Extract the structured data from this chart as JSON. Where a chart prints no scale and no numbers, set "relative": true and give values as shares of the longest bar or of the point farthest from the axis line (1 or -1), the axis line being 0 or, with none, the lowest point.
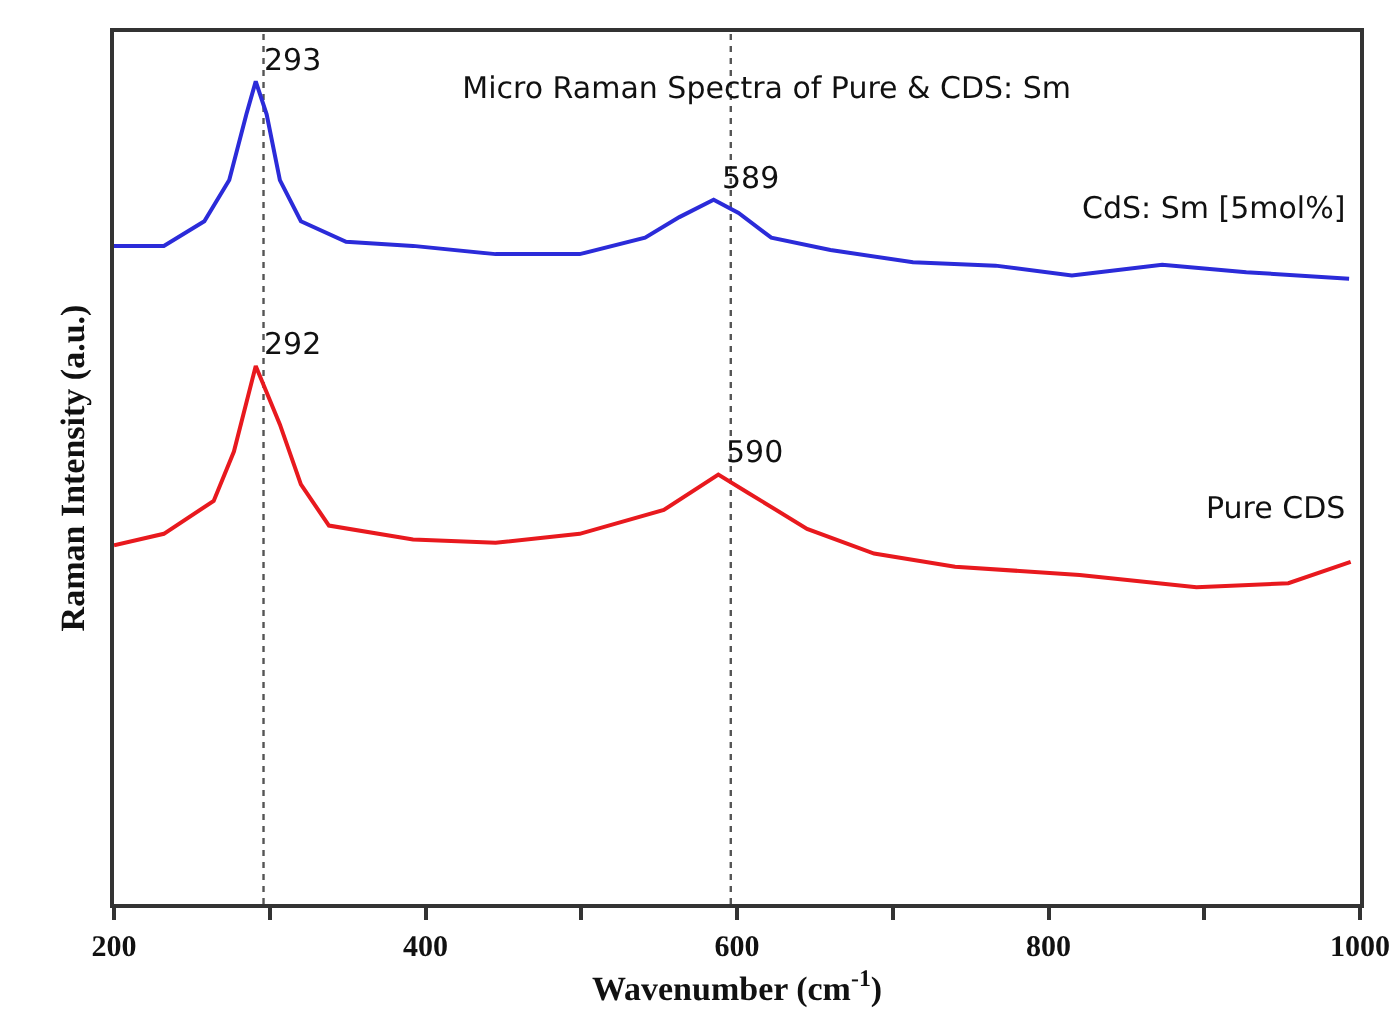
{
  "chart_data": {
    "type": "line",
    "title": "Micro Raman Spectra of Pure & CDS: Sm",
    "xlabel": "Wavenumber (cm$^{-1}$)",
    "ylabel": "Raman Intensity (a.u.)",
    "relative": true,
    "xlim": [
      200,
      1000
    ],
    "xticks": [
      200,
      {
        "value": 300,
        "label": null
      },
      400,
      {
        "value": 500,
        "label": null
      },
      600,
      {
        "value": 700,
        "label": null
      },
      800,
      {
        "value": 900,
        "label": null
      },
      1000
    ],
    "series": [
      {
        "name": "CdS: Sm [5mol%]",
        "color": "#2b2bd9",
        "x": [
          200,
          232,
          258,
          274,
          285,
          291,
          298,
          306.5,
          320,
          349,
          392,
          445,
          499,
          541,
          563,
          585,
          601,
          622,
          660,
          713,
          766,
          815,
          873,
          927,
          993
        ],
        "values": [
          0.8,
          0.8,
          0.83,
          0.88,
          0.96,
          1.0,
          0.96,
          0.88,
          0.83,
          0.805,
          0.8,
          0.79,
          0.79,
          0.81,
          0.835,
          0.856,
          0.84,
          0.81,
          0.795,
          0.78,
          0.776,
          0.764,
          0.777,
          0.768,
          0.76
        ]
      },
      {
        "name": "Pure CDS",
        "color": "#e8191e",
        "x": [
          200,
          232,
          264,
          277,
          291,
          306.5,
          320,
          338,
          392,
          445,
          499,
          553,
          588,
          607,
          645,
          688,
          740,
          820,
          895,
          954,
          994
        ],
        "values": [
          0.436,
          0.45,
          0.49,
          0.55,
          0.654,
          0.583,
          0.51,
          0.46,
          0.443,
          0.439,
          0.45,
          0.479,
          0.522,
          0.5,
          0.456,
          0.426,
          0.41,
          0.4,
          0.385,
          0.39,
          0.416
        ]
      }
    ],
    "annotations": [
      {
        "text": "293",
        "x": 291,
        "y": 1.0
      },
      {
        "text": "589",
        "x": 585,
        "y": 0.856
      },
      {
        "text": "292",
        "x": 291,
        "y": 0.654
      },
      {
        "text": "590",
        "x": 588,
        "y": 0.522
      }
    ],
    "ref_lines": [
      {
        "axis": "x",
        "value": 296,
        "color": "#555555",
        "line_style": "dotted"
      },
      {
        "axis": "x",
        "value": 596,
        "color": "#555555",
        "line_style": "dotted"
      }
    ],
    "grid": false,
    "legend": false,
    "marker": "none",
    "line_style": "solid"
  }
}
